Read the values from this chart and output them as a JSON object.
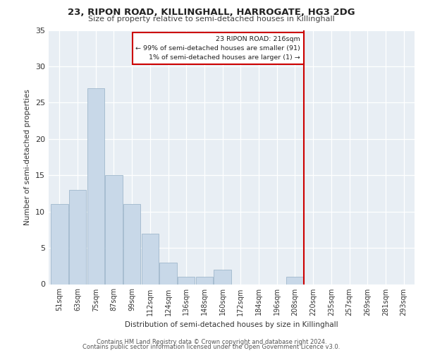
{
  "title": "23, RIPON ROAD, KILLINGHALL, HARROGATE, HG3 2DG",
  "subtitle": "Size of property relative to semi-detached houses in Killinghall",
  "xlabel": "Distribution of semi-detached houses by size in Killinghall",
  "ylabel": "Number of semi-detached properties",
  "bin_labels": [
    "51sqm",
    "63sqm",
    "75sqm",
    "87sqm",
    "99sqm",
    "112sqm",
    "124sqm",
    "136sqm",
    "148sqm",
    "160sqm",
    "172sqm",
    "184sqm",
    "196sqm",
    "208sqm",
    "220sqm",
    "235sqm",
    "257sqm",
    "269sqm",
    "281sqm",
    "293sqm"
  ],
  "bin_values": [
    11,
    13,
    27,
    15,
    11,
    7,
    3,
    1,
    1,
    2,
    0,
    0,
    0,
    1,
    0,
    0,
    0,
    0,
    0,
    0
  ],
  "bar_color": "#c8d8e8",
  "bar_edge_color": "#a0b8cc",
  "vline_x_idx": 14,
  "vline_color": "#cc0000",
  "annotation_title": "23 RIPON ROAD: 216sqm",
  "annotation_line1": "← 99% of semi-detached houses are smaller (91)",
  "annotation_line2": "1% of semi-detached houses are larger (1) →",
  "annotation_box_color": "#cc0000",
  "ylim": [
    0,
    35
  ],
  "yticks": [
    0,
    5,
    10,
    15,
    20,
    25,
    30,
    35
  ],
  "background_color": "#e8eef4",
  "footer1": "Contains HM Land Registry data © Crown copyright and database right 2024.",
  "footer2": "Contains public sector information licensed under the Open Government Licence v3.0."
}
